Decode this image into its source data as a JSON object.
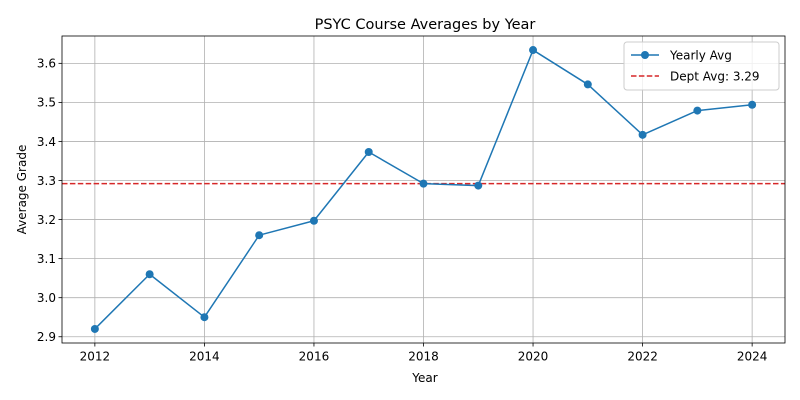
{
  "chart_data": {
    "type": "line",
    "title": "PSYC Course Averages by Year",
    "xlabel": "Year",
    "ylabel": "Average Grade",
    "xlim": [
      2011.4,
      2024.6
    ],
    "ylim": [
      2.884,
      3.67
    ],
    "x_ticks": [
      2012,
      2014,
      2016,
      2018,
      2020,
      2022,
      2024
    ],
    "y_ticks": [
      2.9,
      3.0,
      3.1,
      3.2,
      3.3,
      3.4,
      3.5,
      3.6
    ],
    "y_tick_labels": [
      "2.9",
      "3.0",
      "3.1",
      "3.2",
      "3.3",
      "3.4",
      "3.5",
      "3.6"
    ],
    "grid": true,
    "legend_position": "top-right",
    "series": [
      {
        "name": "Yearly Avg",
        "color": "#1f77b4",
        "marker": "circle",
        "x": [
          2012,
          2013,
          2014,
          2015,
          2016,
          2017,
          2018,
          2019,
          2020,
          2021,
          2022,
          2023,
          2024
        ],
        "y": [
          2.92,
          3.06,
          2.95,
          3.16,
          3.197,
          3.373,
          3.292,
          3.287,
          3.634,
          3.546,
          3.417,
          3.479,
          3.494
        ]
      }
    ],
    "reference_line": {
      "name": "Dept Avg: 3.29",
      "value": 3.292,
      "color": "#d62728",
      "style": "dashed"
    }
  }
}
